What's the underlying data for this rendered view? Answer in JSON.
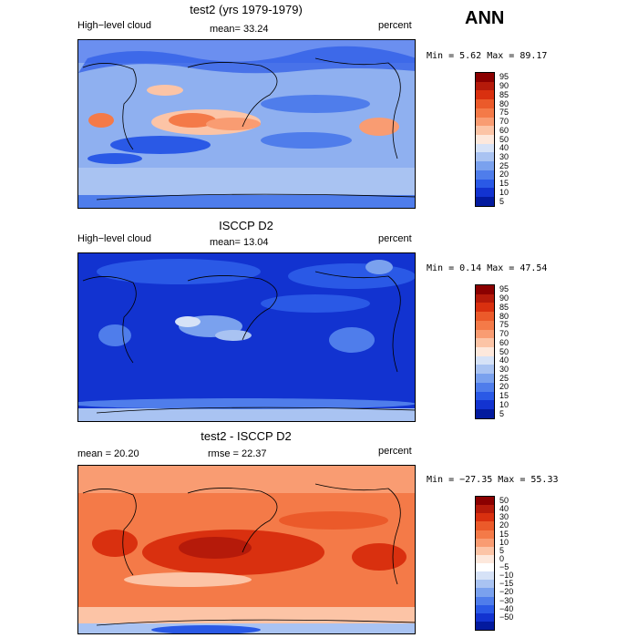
{
  "header": {
    "season": "ANN"
  },
  "panels": [
    {
      "title": "test2 (yrs 1979-1979)",
      "left_label": "High−level cloud",
      "center_label": "mean=  33.24",
      "right_label": "percent",
      "minmax": "Min =   5.62 Max =  89.17",
      "colorbar": {
        "levels": [
          "95",
          "90",
          "85",
          "80",
          "75",
          "70",
          "60",
          "50",
          "40",
          "30",
          "25",
          "20",
          "15",
          "10",
          "5"
        ],
        "colors": [
          "#8b0000",
          "#b51a0a",
          "#d9300f",
          "#eb5a2a",
          "#f47a48",
          "#f99c72",
          "#fcc4a6",
          "#fde8dc",
          "#d6e2f7",
          "#a9c3f2",
          "#7aa1ee",
          "#4f7deb",
          "#2a59e6",
          "#1233d0",
          "#031a9e"
        ]
      },
      "map": {
        "base": "#8fb0f0",
        "icons": "light-blue-cloud-map-icon"
      }
    },
    {
      "title": "ISCCP D2",
      "left_label": "High−level cloud",
      "center_label": "mean=  13.04",
      "right_label": "percent",
      "minmax": "Min =   0.14 Max =  47.54",
      "colorbar": {
        "levels": [
          "95",
          "90",
          "85",
          "80",
          "75",
          "70",
          "60",
          "50",
          "40",
          "30",
          "25",
          "20",
          "15",
          "10",
          "5"
        ],
        "colors": [
          "#8b0000",
          "#b51a0a",
          "#d9300f",
          "#eb5a2a",
          "#f47a48",
          "#f99c72",
          "#fcc4a6",
          "#fde8dc",
          "#d6e2f7",
          "#a9c3f2",
          "#7aa1ee",
          "#4f7deb",
          "#2a59e6",
          "#1233d0",
          "#031a9e"
        ]
      },
      "map": {
        "base": "#1a3fd6"
      }
    },
    {
      "title": "test2 - ISCCP D2",
      "left_label": "mean =  20.20",
      "center_label": "rmse =  22.37",
      "right_label": "percent",
      "minmax": "Min = −27.35 Max =  55.33",
      "colorbar": {
        "levels": [
          "50",
          "40",
          "30",
          "20",
          "15",
          "10",
          "5",
          "0",
          "−5",
          "−10",
          "−15",
          "−20",
          "−30",
          "−40",
          "−50"
        ],
        "colors": [
          "#8b0000",
          "#b51a0a",
          "#d9300f",
          "#eb5a2a",
          "#f47a48",
          "#f99c72",
          "#fcc4a6",
          "#fde8dc",
          "#ffffff",
          "#d6e2f7",
          "#a9c3f2",
          "#7aa1ee",
          "#4f7deb",
          "#2a59e6",
          "#1233d0",
          "#031a9e"
        ]
      },
      "map": {
        "base": "#f06a3a"
      }
    }
  ]
}
